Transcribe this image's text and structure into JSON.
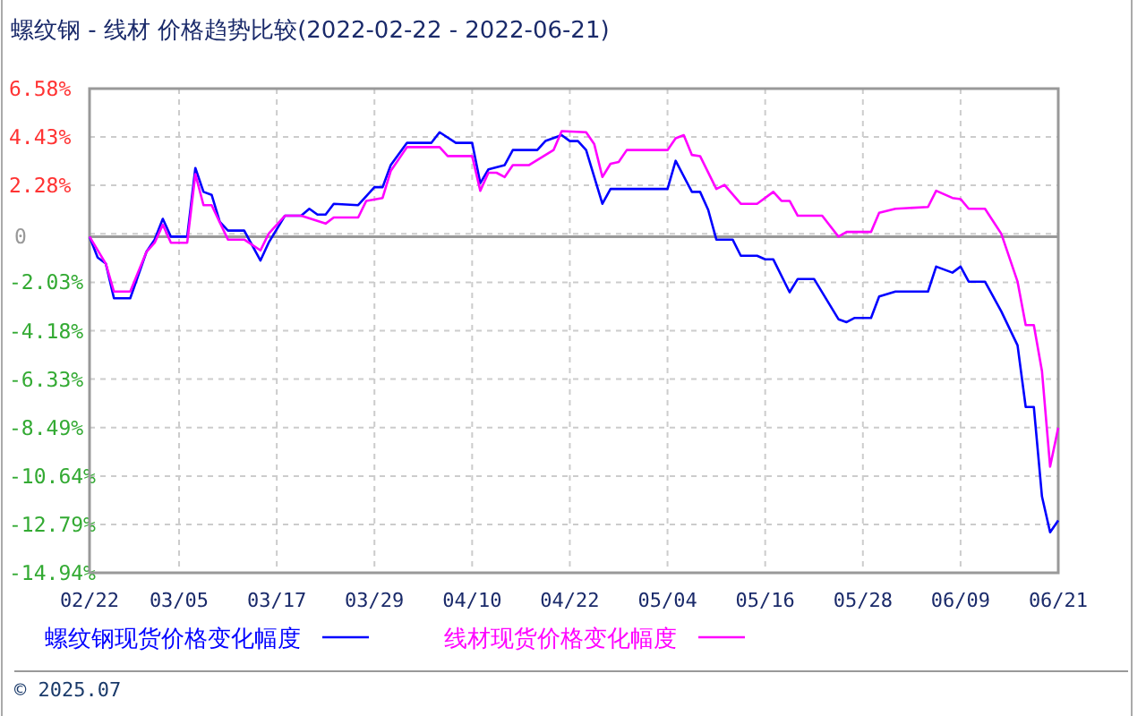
{
  "chart_data": {
    "type": "line",
    "title": "螺纹钢 - 线材 价格趋势比较(2022-02-22 - 2022-06-21)",
    "xlim": [
      "2022-02-22",
      "2022-06-21"
    ],
    "xticks": [
      {
        "value": "2022-02-22",
        "label": "02/22"
      },
      {
        "value": "2022-03-05",
        "label": "03/05"
      },
      {
        "value": "2022-03-17",
        "label": "03/17"
      },
      {
        "value": "2022-03-29",
        "label": "03/29"
      },
      {
        "value": "2022-04-10",
        "label": "04/10"
      },
      {
        "value": "2022-04-22",
        "label": "04/22"
      },
      {
        "value": "2022-05-04",
        "label": "05/04"
      },
      {
        "value": "2022-05-16",
        "label": "05/16"
      },
      {
        "value": "2022-05-28",
        "label": "05/28"
      },
      {
        "value": "2022-06-09",
        "label": "06/09"
      },
      {
        "value": "2022-06-21",
        "label": "06/21"
      }
    ],
    "ylim": [
      -14.94,
      6.58
    ],
    "yticks": [
      {
        "value": 6.58,
        "label": "6.58%"
      },
      {
        "value": 4.43,
        "label": "4.43%"
      },
      {
        "value": 2.28,
        "label": "2.28%"
      },
      {
        "value": 0.13,
        "label": null
      },
      0,
      {
        "value": -2.03,
        "label": "-2.03%"
      },
      {
        "value": -4.18,
        "label": "-4.18%"
      },
      {
        "value": -6.33,
        "label": "-6.33%"
      },
      {
        "value": -8.49,
        "label": "-8.49%"
      },
      {
        "value": -10.64,
        "label": "-10.64%"
      },
      {
        "value": -12.79,
        "label": "-12.79%"
      },
      {
        "value": -14.94,
        "label": "-14.94%"
      }
    ],
    "grid": true,
    "legend": "bottom",
    "line_style": "solid",
    "marker": "none",
    "ref_lines": [
      {
        "axis": "y",
        "value": 0,
        "color": "#999999",
        "line_style": "solid"
      }
    ],
    "annotations": [
      "© 2025.07"
    ],
    "series": [
      {
        "name": "螺纹钢现货价格变化幅度",
        "color": "#0000ff",
        "x": [
          "2022-02-22",
          "2022-02-23",
          "2022-02-24",
          "2022-02-25",
          "2022-02-27",
          "2022-03-01",
          "2022-03-02",
          "2022-03-03",
          "2022-03-04",
          "2022-03-06",
          "2022-03-07",
          "2022-03-08",
          "2022-03-09",
          "2022-03-10",
          "2022-03-11",
          "2022-03-13",
          "2022-03-14",
          "2022-03-15",
          "2022-03-16",
          "2022-03-18",
          "2022-03-20",
          "2022-03-21",
          "2022-03-22",
          "2022-03-23",
          "2022-03-24",
          "2022-03-27",
          "2022-03-29",
          "2022-03-30",
          "2022-03-31",
          "2022-04-02",
          "2022-04-05",
          "2022-04-06",
          "2022-04-08",
          "2022-04-10",
          "2022-04-11",
          "2022-04-12",
          "2022-04-14",
          "2022-04-15",
          "2022-04-18",
          "2022-04-19",
          "2022-04-21",
          "2022-04-22",
          "2022-04-23",
          "2022-04-24",
          "2022-04-26",
          "2022-04-27",
          "2022-04-28",
          "2022-05-04",
          "2022-05-05",
          "2022-05-07",
          "2022-05-08",
          "2022-05-09",
          "2022-05-10",
          "2022-05-12",
          "2022-05-13",
          "2022-05-15",
          "2022-05-16",
          "2022-05-17",
          "2022-05-19",
          "2022-05-20",
          "2022-05-22",
          "2022-05-25",
          "2022-05-26",
          "2022-05-27",
          "2022-05-29",
          "2022-05-30",
          "2022-06-01",
          "2022-06-05",
          "2022-06-06",
          "2022-06-08",
          "2022-06-09",
          "2022-06-10",
          "2022-06-12",
          "2022-06-14",
          "2022-06-16",
          "2022-06-17",
          "2022-06-18",
          "2022-06-19",
          "2022-06-20",
          "2022-06-21"
        ],
        "values": [
          0,
          -0.93,
          -1.2,
          -2.74,
          -2.74,
          -0.67,
          -0.13,
          0.79,
          0,
          0,
          3.05,
          1.99,
          1.86,
          0.66,
          0.27,
          0.27,
          -0.4,
          -1.06,
          -0.27,
          0.93,
          0.93,
          1.24,
          0.98,
          0.98,
          1.46,
          1.4,
          2.2,
          2.2,
          3.18,
          4.17,
          4.17,
          4.64,
          4.17,
          4.17,
          2.38,
          2.99,
          3.18,
          3.85,
          3.85,
          4.25,
          4.51,
          4.25,
          4.25,
          3.85,
          1.46,
          2.12,
          2.12,
          2.12,
          3.37,
          1.99,
          1.99,
          1.19,
          -0.13,
          -0.13,
          -0.85,
          -0.85,
          -1.01,
          -1.01,
          -2.47,
          -1.88,
          -1.88,
          -3.67,
          -3.8,
          -3.61,
          -3.61,
          -2.66,
          -2.44,
          -2.44,
          -1.33,
          -1.6,
          -1.33,
          -2.0,
          -2.0,
          -3.32,
          -4.83,
          -7.57,
          -7.57,
          -11.55,
          -13.14,
          -12.61
        ]
      },
      {
        "name": "线材现货价格变化幅度",
        "color": "#ff00ff",
        "x": [
          "2022-02-22",
          "2022-02-24",
          "2022-02-25",
          "2022-02-27",
          "2022-03-01",
          "2022-03-02",
          "2022-03-03",
          "2022-03-04",
          "2022-03-06",
          "2022-03-07",
          "2022-03-08",
          "2022-03-09",
          "2022-03-11",
          "2022-03-13",
          "2022-03-15",
          "2022-03-16",
          "2022-03-18",
          "2022-03-20",
          "2022-03-23",
          "2022-03-24",
          "2022-03-27",
          "2022-03-28",
          "2022-03-30",
          "2022-03-31",
          "2022-04-02",
          "2022-04-06",
          "2022-04-07",
          "2022-04-10",
          "2022-04-11",
          "2022-04-12",
          "2022-04-13",
          "2022-04-14",
          "2022-04-15",
          "2022-04-17",
          "2022-04-20",
          "2022-04-21",
          "2022-04-24",
          "2022-04-25",
          "2022-04-26",
          "2022-04-27",
          "2022-04-28",
          "2022-04-29",
          "2022-05-04",
          "2022-05-05",
          "2022-05-06",
          "2022-05-07",
          "2022-05-08",
          "2022-05-10",
          "2022-05-11",
          "2022-05-13",
          "2022-05-15",
          "2022-05-17",
          "2022-05-18",
          "2022-05-19",
          "2022-05-20",
          "2022-05-23",
          "2022-05-25",
          "2022-05-26",
          "2022-05-29",
          "2022-05-30",
          "2022-06-01",
          "2022-06-05",
          "2022-06-06",
          "2022-06-08",
          "2022-06-09",
          "2022-06-10",
          "2022-06-12",
          "2022-06-14",
          "2022-06-16",
          "2022-06-17",
          "2022-06-18",
          "2022-06-19",
          "2022-06-20",
          "2022-06-21"
        ],
        "values": [
          0,
          -1.2,
          -2.44,
          -2.44,
          -0.67,
          -0.27,
          0.53,
          -0.27,
          -0.27,
          2.78,
          1.4,
          1.4,
          -0.13,
          -0.13,
          -0.61,
          0.13,
          0.93,
          0.93,
          0.58,
          0.85,
          0.85,
          1.59,
          1.72,
          2.92,
          3.98,
          3.98,
          3.58,
          3.58,
          2.04,
          2.84,
          2.84,
          2.65,
          3.18,
          3.18,
          3.85,
          4.69,
          4.64,
          4.11,
          2.65,
          3.24,
          3.32,
          3.85,
          3.85,
          4.37,
          4.51,
          3.63,
          3.58,
          2.12,
          2.3,
          1.46,
          1.46,
          1.99,
          1.59,
          1.59,
          0.93,
          0.93,
          0,
          0.21,
          0.21,
          1.06,
          1.24,
          1.32,
          2.04,
          1.72,
          1.67,
          1.24,
          1.24,
          0.13,
          -2.0,
          -3.93,
          -3.93,
          -5.98,
          -10.22,
          -8.49
        ]
      }
    ]
  }
}
